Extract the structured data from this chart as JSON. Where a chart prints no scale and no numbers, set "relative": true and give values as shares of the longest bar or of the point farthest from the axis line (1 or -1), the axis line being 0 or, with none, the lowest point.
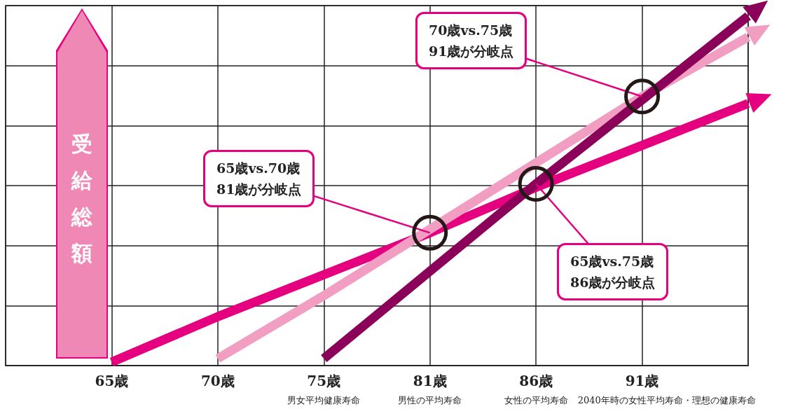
{
  "chart_data": {
    "type": "line",
    "relative": true,
    "grid": true,
    "ylabel": "受給総額",
    "categories": [
      null,
      "65歳",
      "70歳",
      "75歳",
      "81歳",
      "86歳",
      "91歳",
      null
    ],
    "series": [
      {
        "color": "#e4007f",
        "values": [
          null,
          0.01,
          0.14,
          0.26,
          0.38,
          0.51,
          0.63,
          0.75
        ]
      },
      {
        "color": "#f19ec2",
        "values": [
          null,
          null,
          0.02,
          0.2,
          0.39,
          0.58,
          0.77,
          0.94
        ]
      },
      {
        "color": "#8b0058",
        "values": [
          null,
          null,
          null,
          0.02,
          0.27,
          0.52,
          0.76,
          1.0
        ]
      }
    ],
    "annotations": [
      {
        "text": "65歳vs.70歳\n81歳が分岐点",
        "x": "81歳",
        "y": 0.38
      },
      {
        "text": "70歳vs.75歳\n91歳が分岐点",
        "x": "91歳",
        "y": 0.77
      },
      {
        "text": "65歳vs.75歳\n86歳が分岐点",
        "x": "86歳",
        "y": 0.52
      },
      "男女平均健康寿命",
      "男性の平均寿命",
      "女性の平均寿命",
      "2040年時の女性平均寿命・理想の健康寿命"
    ]
  }
}
